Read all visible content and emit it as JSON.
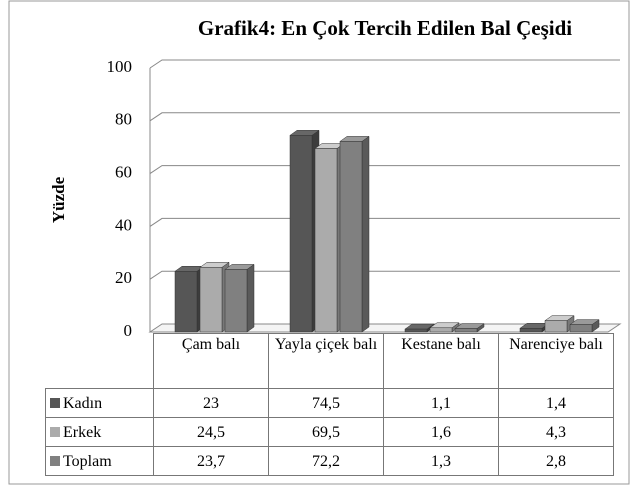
{
  "chart_data": {
    "type": "bar3d",
    "title": "Grafik4: En Çok Tercih Edilen Bal Çeşidi",
    "y_label": "Yüzde",
    "categories": [
      "Çam balı",
      "Yayla çiçek balı",
      "Kestane balı",
      "Narenciye balı"
    ],
    "series": [
      {
        "name": "Kadın",
        "color": "#565656",
        "values": [
          23,
          74.5,
          1.1,
          1.4
        ],
        "value_labels": [
          "23",
          "74,5",
          "1,1",
          "1,4"
        ]
      },
      {
        "name": "Erkek",
        "color": "#ababab",
        "values": [
          24.5,
          69.5,
          1.6,
          4.3
        ],
        "value_labels": [
          "24,5",
          "69,5",
          "1,6",
          "4,3"
        ]
      },
      {
        "name": "Toplam",
        "color": "#808080",
        "values": [
          23.7,
          72.2,
          1.3,
          2.8
        ],
        "value_labels": [
          "23,7",
          "72,2",
          "1,3",
          "2,8"
        ]
      }
    ],
    "ylim": [
      0,
      100
    ],
    "yticks": [
      0,
      20,
      40,
      60,
      80,
      100
    ],
    "grid": true
  }
}
